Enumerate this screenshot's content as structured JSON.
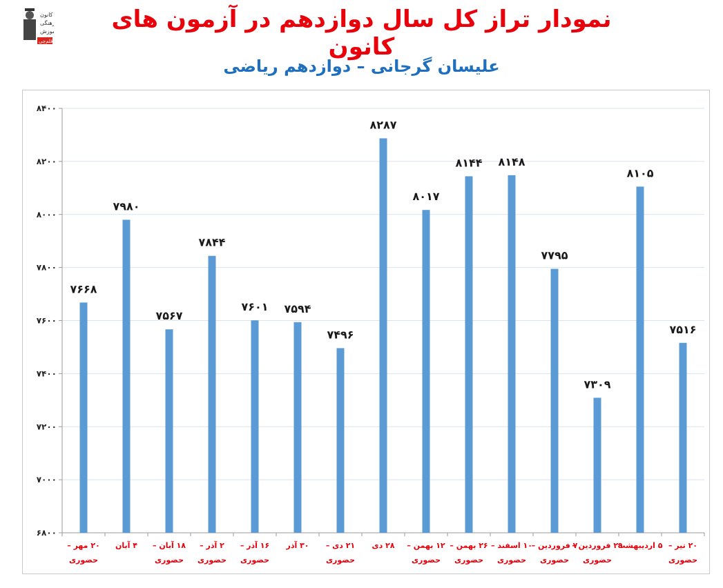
{
  "header": {
    "title": "نمودار تراز کل سال دوازدهم در آزمون های کانون",
    "subtitle": "علیسان گرجانی – دوازدهم ریاضی",
    "logo_lines": [
      "کانون",
      "فرهنگی",
      "آموزش",
      "قلم‌چی"
    ]
  },
  "colors": {
    "title": "#e8000b",
    "subtitle": "#1f6fbf",
    "bar": "#5b9bd5",
    "grid": "#d9e3f0",
    "xlabel": "#e8000b",
    "value_label": "#1a1a1a"
  },
  "chart_data": {
    "type": "bar",
    "categories": [
      [
        "۲۰ مهر –",
        "حضوری"
      ],
      [
        "۴ آبان"
      ],
      [
        "۱۸ آبان –",
        "حضوری"
      ],
      [
        "۲ آذر –",
        "حضوری"
      ],
      [
        "۱۶ آذر –",
        "حضوری"
      ],
      [
        "۳۰ آذر"
      ],
      [
        "۲۱ دی –",
        "حضوری"
      ],
      [
        "۲۸ دی"
      ],
      [
        "۱۲ بهمن –",
        "حضوری"
      ],
      [
        "۲۶ بهمن –",
        "حضوری"
      ],
      [
        "۱۰ اسفند –",
        "حضوری"
      ],
      [
        "۷ فروردین –",
        "حضوری"
      ],
      [
        "۲۹ فروردین –",
        "حضوری"
      ],
      [
        "۵ اردیبهشت"
      ],
      [
        "۲۰ تیر –",
        "حضوری"
      ]
    ],
    "values": [
      7668,
      7980,
      7567,
      7844,
      7601,
      7594,
      7496,
      8287,
      8017,
      8144,
      8148,
      7795,
      7309,
      8105,
      7516
    ],
    "value_labels": [
      "۷۶۶۸",
      "۷۹۸۰",
      "۷۵۶۷",
      "۷۸۴۴",
      "۷۶۰۱",
      "۷۵۹۴",
      "۷۴۹۶",
      "۸۲۸۷",
      "۸۰۱۷",
      "۸۱۴۴",
      "۸۱۴۸",
      "۷۷۹۵",
      "۷۳۰۹",
      "۸۱۰۵",
      "۷۵۱۶"
    ],
    "ylim": [
      6800,
      8400
    ],
    "yticks": [
      6800,
      7000,
      7200,
      7400,
      7600,
      7800,
      8000,
      8200,
      8400
    ],
    "ytick_labels": [
      "۶۸۰۰",
      "۷۰۰۰",
      "۷۲۰۰",
      "۷۴۰۰",
      "۷۶۰۰",
      "۷۸۰۰",
      "۸۰۰۰",
      "۸۲۰۰",
      "۸۴۰۰"
    ],
    "grid": true,
    "legend": "none"
  }
}
